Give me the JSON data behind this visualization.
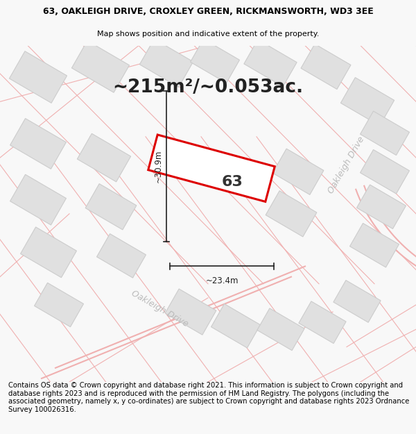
{
  "title_line1": "63, OAKLEIGH DRIVE, CROXLEY GREEN, RICKMANSWORTH, WD3 3EE",
  "title_line2": "Map shows position and indicative extent of the property.",
  "area_text": "~215m²/~0.053ac.",
  "label_63": "63",
  "dim_width": "~23.4m",
  "dim_height": "~30.9m",
  "road_label_bottom": "Oakleigh Drive",
  "road_label_right": "Oakleigh Drive",
  "footer_text": "Contains OS data © Crown copyright and database right 2021. This information is subject to Crown copyright and database rights 2023 and is reproduced with the permission of HM Land Registry. The polygons (including the associated geometry, namely x, y co-ordinates) are subject to Crown copyright and database rights 2023 Ordnance Survey 100026316.",
  "bg_color": "#f8f8f8",
  "map_bg": "#ffffff",
  "plot_fill": "#ffffff",
  "plot_edge": "#dd0000",
  "neighbor_fill": "#e0e0e0",
  "neighbor_edge": "#cccccc",
  "road_line_color": "#f0b0b0",
  "road_label_color": "#bbbbbb",
  "dim_line_color": "#222222",
  "title_fontsize": 9.0,
  "subtitle_fontsize": 8.0,
  "area_fontsize": 19,
  "label_fontsize": 16,
  "dim_fontsize": 8.5,
  "footer_fontsize": 7.2,
  "road_fontsize": 9
}
